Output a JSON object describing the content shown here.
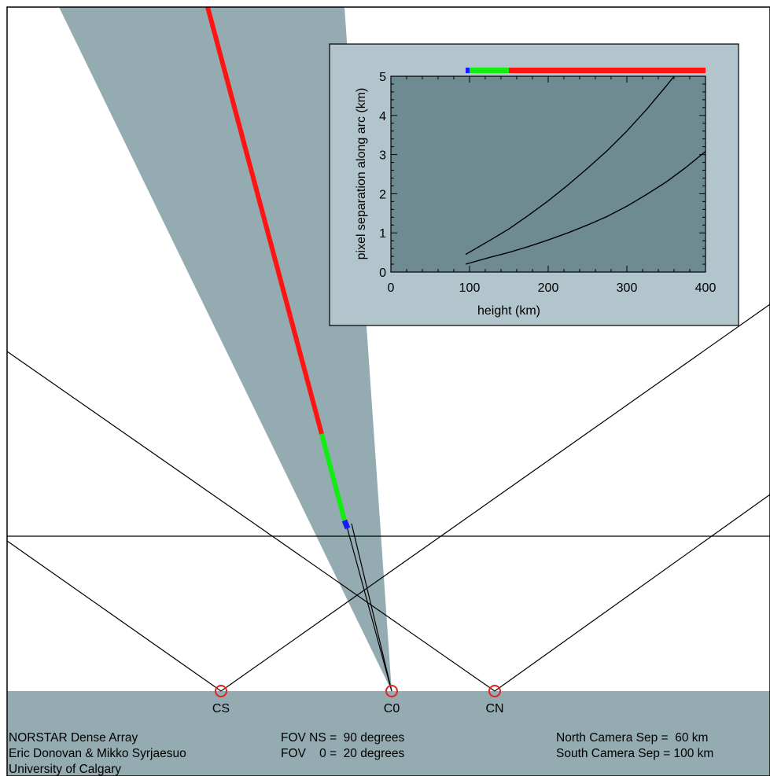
{
  "colors": {
    "ground": "#93abb1",
    "fov_wedge": "#93abb1",
    "inset_background": "#b2c5cc",
    "inset_plot_area": "#6e8b92",
    "segment_low": "#1a1aff",
    "segment_mid": "#10ee10",
    "segment_high": "#ff1414",
    "camera_marker": "#e82020",
    "line": "#000000"
  },
  "cameras": [
    {
      "label": "CS"
    },
    {
      "label": "C0"
    },
    {
      "label": "CN"
    }
  ],
  "info": {
    "left_lines": [
      "NORSTAR Dense Array",
      "Eric Donovan & Mikko Syrjaesuo",
      "University of Calgary"
    ],
    "middle_lines": [
      "FOV NS =  90 degrees",
      "FOV    0 =  20 degrees"
    ],
    "right_lines": [
      "North Camera Sep =  60 km",
      "South Camera Sep = 100 km"
    ]
  },
  "chart_data": {
    "type": "line",
    "xlabel": "height (km)",
    "ylabel": "pixel separation along arc (km)",
    "xlim": [
      0,
      400
    ],
    "ylim": [
      0,
      5
    ],
    "x_ticks": [
      "0",
      "100",
      "200",
      "300",
      "400"
    ],
    "y_ticks": [
      "0",
      "1",
      "2",
      "3",
      "4",
      "5"
    ],
    "grid": false,
    "series": [
      {
        "x": [
          95,
          125,
          150,
          175,
          200,
          225,
          250,
          275,
          300,
          325,
          350,
          360
        ],
        "values": [
          0.45,
          0.8,
          1.1,
          1.45,
          1.82,
          2.22,
          2.65,
          3.1,
          3.6,
          4.15,
          4.75,
          5.0
        ]
      },
      {
        "x": [
          95,
          125,
          150,
          175,
          200,
          225,
          250,
          275,
          300,
          325,
          350,
          375,
          400
        ],
        "values": [
          0.2,
          0.37,
          0.5,
          0.65,
          0.82,
          1.0,
          1.2,
          1.42,
          1.68,
          1.98,
          2.3,
          2.67,
          3.08
        ]
      }
    ],
    "height_band": [
      {
        "from": 95,
        "to": 100,
        "color": "segment_low"
      },
      {
        "from": 100,
        "to": 150,
        "color": "segment_mid"
      },
      {
        "from": 150,
        "to": 400,
        "color": "segment_high"
      }
    ]
  }
}
